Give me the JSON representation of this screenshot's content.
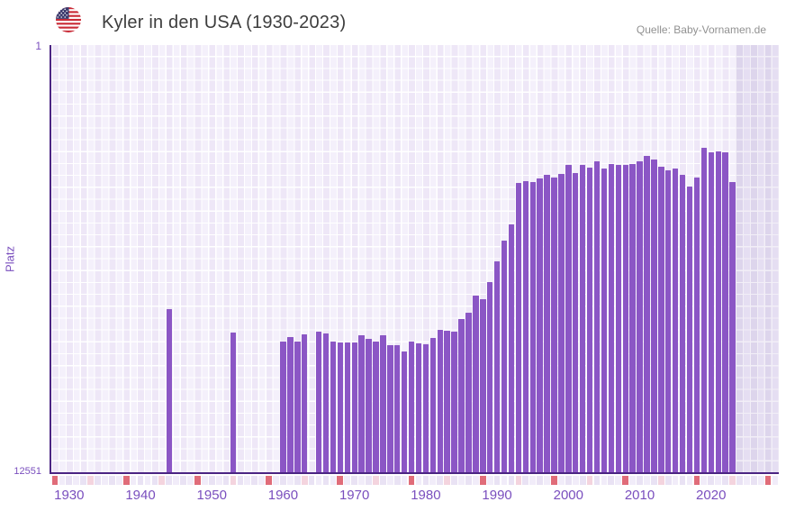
{
  "header": {
    "title": "Kyler in den USA (1930-2023)",
    "flag": "us-flag",
    "source": "Quelle: Baby-Vornamen.de"
  },
  "chart_data": {
    "type": "bar",
    "title": "Kyler in den USA (1930-2023)",
    "xlabel": "",
    "ylabel": "Platz",
    "y_axis_inverted": true,
    "ylim": [
      1,
      12551
    ],
    "y_tick_labels": [
      "1",
      "12551"
    ],
    "x_domain": [
      1928,
      2030
    ],
    "x_ticks": [
      1930,
      1940,
      1950,
      1960,
      1970,
      1980,
      1990,
      2000,
      2010,
      2020
    ],
    "no_data_band_from": 2024,
    "grid": true,
    "legend": false,
    "points": [
      {
        "year": 1944,
        "rank": 7740
      },
      {
        "year": 1953,
        "rank": 8440
      },
      {
        "year": 1960,
        "rank": 8690
      },
      {
        "year": 1961,
        "rank": 8560
      },
      {
        "year": 1962,
        "rank": 8700
      },
      {
        "year": 1963,
        "rank": 8480
      },
      {
        "year": 1965,
        "rank": 8390
      },
      {
        "year": 1966,
        "rank": 8460
      },
      {
        "year": 1967,
        "rank": 8690
      },
      {
        "year": 1968,
        "rank": 8720
      },
      {
        "year": 1969,
        "rank": 8720
      },
      {
        "year": 1970,
        "rank": 8720
      },
      {
        "year": 1971,
        "rank": 8510
      },
      {
        "year": 1972,
        "rank": 8620
      },
      {
        "year": 1973,
        "rank": 8700
      },
      {
        "year": 1974,
        "rank": 8510
      },
      {
        "year": 1975,
        "rank": 8810
      },
      {
        "year": 1976,
        "rank": 8790
      },
      {
        "year": 1977,
        "rank": 8980
      },
      {
        "year": 1978,
        "rank": 8690
      },
      {
        "year": 1979,
        "rank": 8740
      },
      {
        "year": 1980,
        "rank": 8770
      },
      {
        "year": 1981,
        "rank": 8580
      },
      {
        "year": 1982,
        "rank": 8340
      },
      {
        "year": 1983,
        "rank": 8370
      },
      {
        "year": 1984,
        "rank": 8410
      },
      {
        "year": 1985,
        "rank": 8020
      },
      {
        "year": 1986,
        "rank": 7840
      },
      {
        "year": 1987,
        "rank": 7340
      },
      {
        "year": 1988,
        "rank": 7440
      },
      {
        "year": 1989,
        "rank": 6940
      },
      {
        "year": 1990,
        "rank": 6340
      },
      {
        "year": 1991,
        "rank": 5740
      },
      {
        "year": 1992,
        "rank": 5260
      },
      {
        "year": 1993,
        "rank": 4050
      },
      {
        "year": 1994,
        "rank": 3980
      },
      {
        "year": 1995,
        "rank": 4030
      },
      {
        "year": 1996,
        "rank": 3920
      },
      {
        "year": 1997,
        "rank": 3810
      },
      {
        "year": 1998,
        "rank": 3880
      },
      {
        "year": 1999,
        "rank": 3770
      },
      {
        "year": 2000,
        "rank": 3520
      },
      {
        "year": 2001,
        "rank": 3750
      },
      {
        "year": 2002,
        "rank": 3510
      },
      {
        "year": 2003,
        "rank": 3590
      },
      {
        "year": 2004,
        "rank": 3420
      },
      {
        "year": 2005,
        "rank": 3630
      },
      {
        "year": 2006,
        "rank": 3500
      },
      {
        "year": 2007,
        "rank": 3520
      },
      {
        "year": 2008,
        "rank": 3520
      },
      {
        "year": 2009,
        "rank": 3490
      },
      {
        "year": 2010,
        "rank": 3400
      },
      {
        "year": 2011,
        "rank": 3260
      },
      {
        "year": 2012,
        "rank": 3360
      },
      {
        "year": 2013,
        "rank": 3580
      },
      {
        "year": 2014,
        "rank": 3680
      },
      {
        "year": 2015,
        "rank": 3630
      },
      {
        "year": 2016,
        "rank": 3800
      },
      {
        "year": 2017,
        "rank": 4140
      },
      {
        "year": 2018,
        "rank": 3880
      },
      {
        "year": 2019,
        "rank": 3020
      },
      {
        "year": 2020,
        "rank": 3150
      },
      {
        "year": 2021,
        "rank": 3130
      },
      {
        "year": 2022,
        "rank": 3150
      },
      {
        "year": 2023,
        "rank": 4010
      }
    ]
  },
  "colors": {
    "bar": "#8b56c5",
    "axis": "#4b2583",
    "tick_label": "#7a4fbe",
    "strip_red": "#e06c79",
    "strip_pink": "#f4d4de",
    "strip_light_a": "#f1ecf9",
    "strip_light_b": "#e9e2f4",
    "title_text": "#3d3d3d",
    "source_text": "#919191"
  }
}
